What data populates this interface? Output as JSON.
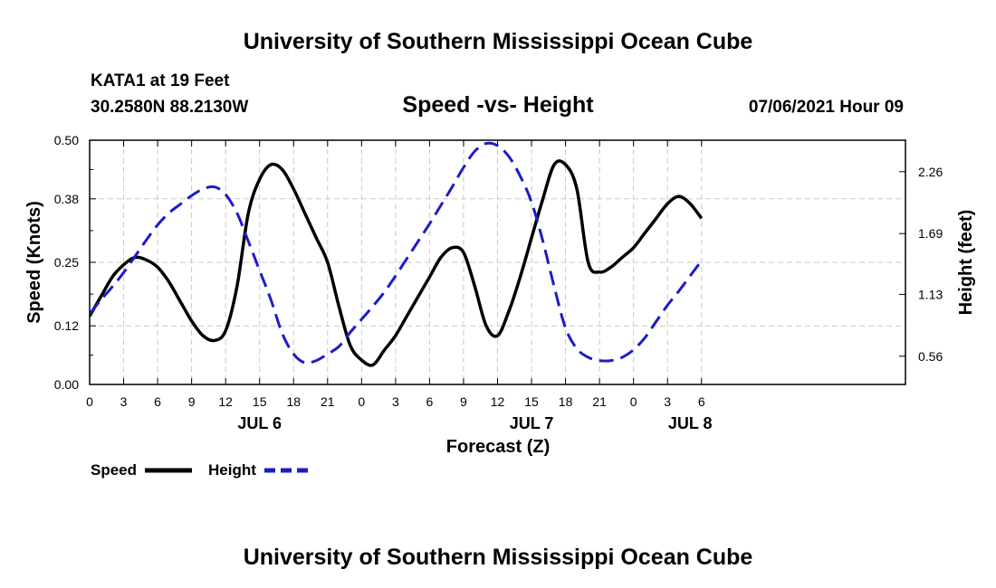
{
  "header": {
    "title": "University of Southern Mississippi Ocean Cube",
    "station": "KATA1 at 19 Feet",
    "coords": "30.2580N  88.2130W",
    "datetime": "07/06/2021 Hour 09"
  },
  "footer": {
    "title": "University of Southern Mississippi Ocean Cube"
  },
  "colors": {
    "speed": "#000000",
    "height": "#1c1cc8"
  },
  "chart_data": {
    "type": "line",
    "title": "Speed -vs- Height",
    "xlabel": "Forecast (Z)",
    "ylabel": "Speed (Knots)",
    "y2label": "Height (feet)",
    "x_range_hours": [
      0,
      72
    ],
    "x_ticks": [
      {
        "h": 0,
        "label": "0"
      },
      {
        "h": 3,
        "label": "3"
      },
      {
        "h": 6,
        "label": "6"
      },
      {
        "h": 9,
        "label": "9"
      },
      {
        "h": 12,
        "label": "12"
      },
      {
        "h": 15,
        "label": "15"
      },
      {
        "h": 18,
        "label": "18"
      },
      {
        "h": 21,
        "label": "21"
      },
      {
        "h": 24,
        "label": "0"
      },
      {
        "h": 27,
        "label": "3"
      },
      {
        "h": 30,
        "label": "6"
      },
      {
        "h": 33,
        "label": "9"
      },
      {
        "h": 36,
        "label": "12"
      },
      {
        "h": 39,
        "label": "15"
      },
      {
        "h": 42,
        "label": "18"
      },
      {
        "h": 45,
        "label": "21"
      },
      {
        "h": 48,
        "label": "0"
      },
      {
        "h": 51,
        "label": "3"
      },
      {
        "h": 54,
        "label": "6"
      }
    ],
    "day_labels": [
      {
        "h": 15,
        "label": "JUL 6"
      },
      {
        "h": 39,
        "label": "JUL 7"
      },
      {
        "h": 53,
        "label": "JUL 8"
      }
    ],
    "ylim": [
      0,
      0.5
    ],
    "y_ticks": [
      "0.00",
      "0.12",
      "0.25",
      "0.38",
      "0.50"
    ],
    "y2lim": [
      0.3,
      2.55
    ],
    "y2_ticks": [
      "0.56",
      "1.13",
      "1.69",
      "2.26"
    ],
    "series": [
      {
        "name": "Speed",
        "axis": "left",
        "x": [
          0,
          1,
          2,
          3,
          4,
          5,
          6,
          7,
          8,
          9,
          10,
          11,
          12,
          13,
          14,
          15,
          16,
          17,
          18,
          19,
          20,
          21,
          22,
          23,
          24,
          25,
          26,
          27,
          28,
          29,
          30,
          31,
          32,
          33,
          34,
          35,
          36,
          37,
          38,
          39,
          40,
          41,
          42,
          43,
          44,
          45,
          46,
          47,
          48,
          49,
          50,
          51,
          52,
          53,
          54
        ],
        "values": [
          0.14,
          0.18,
          0.22,
          0.245,
          0.26,
          0.255,
          0.24,
          0.21,
          0.17,
          0.13,
          0.1,
          0.09,
          0.11,
          0.2,
          0.35,
          0.42,
          0.45,
          0.44,
          0.4,
          0.35,
          0.3,
          0.25,
          0.16,
          0.08,
          0.05,
          0.04,
          0.07,
          0.1,
          0.14,
          0.18,
          0.22,
          0.26,
          0.28,
          0.27,
          0.2,
          0.12,
          0.1,
          0.15,
          0.22,
          0.3,
          0.38,
          0.45,
          0.45,
          0.4,
          0.25,
          0.23,
          0.24,
          0.26,
          0.28,
          0.31,
          0.34,
          0.37,
          0.385,
          0.37,
          0.34
        ]
      },
      {
        "name": "Height",
        "axis": "right",
        "x": [
          0,
          1,
          2,
          3,
          4,
          5,
          6,
          7,
          8,
          9,
          10,
          11,
          12,
          13,
          14,
          15,
          16,
          17,
          18,
          19,
          20,
          21,
          22,
          23,
          24,
          25,
          26,
          27,
          28,
          29,
          30,
          31,
          32,
          33,
          34,
          35,
          36,
          37,
          38,
          39,
          40,
          41,
          42,
          43,
          44,
          45,
          46,
          47,
          48,
          49,
          50,
          51,
          52,
          53,
          54
        ],
        "values": [
          0.95,
          1.08,
          1.2,
          1.33,
          1.48,
          1.63,
          1.77,
          1.88,
          1.96,
          2.04,
          2.1,
          2.12,
          2.05,
          1.88,
          1.62,
          1.35,
          1.08,
          0.77,
          0.58,
          0.5,
          0.52,
          0.58,
          0.65,
          0.78,
          0.9,
          1.02,
          1.15,
          1.3,
          1.46,
          1.62,
          1.78,
          1.95,
          2.12,
          2.3,
          2.45,
          2.52,
          2.5,
          2.4,
          2.22,
          1.98,
          1.62,
          1.2,
          0.82,
          0.63,
          0.55,
          0.52,
          0.52,
          0.55,
          0.62,
          0.73,
          0.88,
          1.03,
          1.16,
          1.3,
          1.44
        ]
      }
    ],
    "legend": [
      {
        "label": "Speed",
        "style": "solid"
      },
      {
        "label": "Height",
        "style": "dashed"
      }
    ],
    "legend_position": "bottom-left"
  }
}
